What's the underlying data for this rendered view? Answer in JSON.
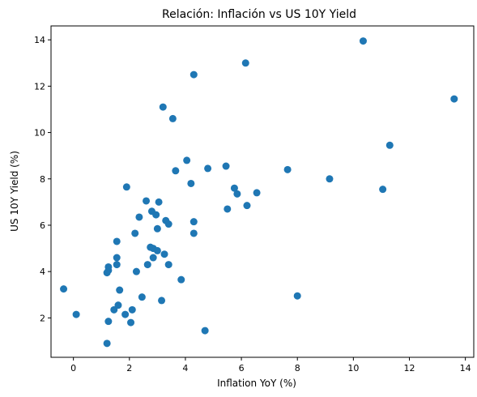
{
  "chart_data": {
    "type": "scatter",
    "title": "Relación: Inflación vs US 10Y Yield",
    "xlabel": "Inflation YoY (%)",
    "ylabel": "US 10Y Yield (%)",
    "xlim": [
      -0.8,
      14.3
    ],
    "ylim": [
      0.3,
      14.6
    ],
    "xticks": [
      0,
      2,
      4,
      6,
      8,
      10,
      12,
      14
    ],
    "yticks": [
      2,
      4,
      6,
      8,
      10,
      12,
      14
    ],
    "grid": false,
    "marker_color": "#1f77b4",
    "points": [
      [
        -0.35,
        3.25
      ],
      [
        0.1,
        2.15
      ],
      [
        1.2,
        0.9
      ],
      [
        1.25,
        1.85
      ],
      [
        1.2,
        3.95
      ],
      [
        1.25,
        4.05
      ],
      [
        1.25,
        4.2
      ],
      [
        1.45,
        2.35
      ],
      [
        1.6,
        2.55
      ],
      [
        1.65,
        3.2
      ],
      [
        1.55,
        4.3
      ],
      [
        1.55,
        4.6
      ],
      [
        1.55,
        5.3
      ],
      [
        1.85,
        2.15
      ],
      [
        1.9,
        7.65
      ],
      [
        2.05,
        1.8
      ],
      [
        2.1,
        2.35
      ],
      [
        2.2,
        5.65
      ],
      [
        2.25,
        4.0
      ],
      [
        2.35,
        6.35
      ],
      [
        2.45,
        2.9
      ],
      [
        2.6,
        7.05
      ],
      [
        2.65,
        4.3
      ],
      [
        2.75,
        5.05
      ],
      [
        2.8,
        6.6
      ],
      [
        2.85,
        4.6
      ],
      [
        2.85,
        5.0
      ],
      [
        2.95,
        6.45
      ],
      [
        3.0,
        4.9
      ],
      [
        3.0,
        5.85
      ],
      [
        3.05,
        7.0
      ],
      [
        3.15,
        2.75
      ],
      [
        3.2,
        11.1
      ],
      [
        3.25,
        4.75
      ],
      [
        3.3,
        6.2
      ],
      [
        3.4,
        4.3
      ],
      [
        3.4,
        6.05
      ],
      [
        3.55,
        10.6
      ],
      [
        3.65,
        8.35
      ],
      [
        3.85,
        3.65
      ],
      [
        4.05,
        8.8
      ],
      [
        4.2,
        7.8
      ],
      [
        4.3,
        5.65
      ],
      [
        4.3,
        6.15
      ],
      [
        4.3,
        12.5
      ],
      [
        4.7,
        1.45
      ],
      [
        4.8,
        8.45
      ],
      [
        5.45,
        8.55
      ],
      [
        5.5,
        6.7
      ],
      [
        5.75,
        7.6
      ],
      [
        5.85,
        7.35
      ],
      [
        6.15,
        13.0
      ],
      [
        6.2,
        6.85
      ],
      [
        6.55,
        7.4
      ],
      [
        7.65,
        8.4
      ],
      [
        8.0,
        2.95
      ],
      [
        9.15,
        8.0
      ],
      [
        10.35,
        13.95
      ],
      [
        11.05,
        7.55
      ],
      [
        11.3,
        9.45
      ],
      [
        13.6,
        11.45
      ]
    ]
  }
}
